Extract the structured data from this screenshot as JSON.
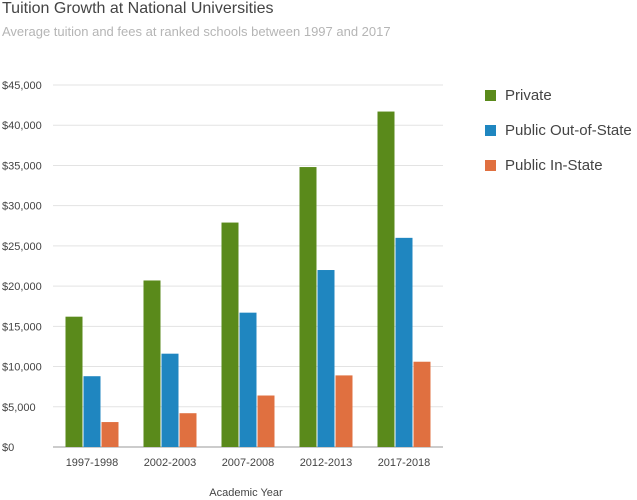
{
  "chart_data": {
    "type": "bar",
    "title": "Tuition Growth at National Universities",
    "subtitle": "Average tuition and fees at ranked schools between 1997 and 2017",
    "xlabel": "Academic Year",
    "ylabel": "",
    "ylim": [
      0,
      45000
    ],
    "yticks": [
      0,
      5000,
      10000,
      15000,
      20000,
      25000,
      30000,
      35000,
      40000,
      45000
    ],
    "ytick_labels": [
      "$0",
      "$5,000",
      "$10,000",
      "$15,000",
      "$20,000",
      "$25,000",
      "$30,000",
      "$35,000",
      "$40,000",
      "$45,000"
    ],
    "categories": [
      "1997-1998",
      "2002-2003",
      "2007-2008",
      "2012-2013",
      "2017-2018"
    ],
    "series": [
      {
        "name": "Private",
        "color": "#5a8a1b",
        "values": [
          16200,
          20700,
          27900,
          34800,
          41700
        ]
      },
      {
        "name": "Public Out-of-State",
        "color": "#1f86c0",
        "values": [
          8800,
          11600,
          16700,
          22000,
          26000
        ]
      },
      {
        "name": "Public In-State",
        "color": "#e07040",
        "values": [
          3100,
          4200,
          6400,
          8900,
          10600
        ]
      }
    ],
    "grid": true,
    "legend": "right"
  }
}
